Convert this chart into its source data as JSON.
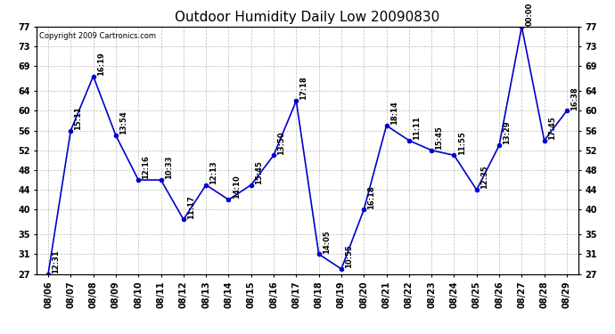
{
  "title": "Outdoor Humidity Daily Low 20090830",
  "copyright": "Copyright 2009 Cartronics.com",
  "x_labels": [
    "08/06",
    "08/07",
    "08/08",
    "08/09",
    "08/10",
    "08/11",
    "08/12",
    "08/13",
    "08/14",
    "08/15",
    "08/16",
    "08/17",
    "08/18",
    "08/19",
    "08/20",
    "08/21",
    "08/22",
    "08/23",
    "08/24",
    "08/25",
    "08/26",
    "08/27",
    "08/28",
    "08/29"
  ],
  "y_values": [
    27,
    56,
    67,
    55,
    46,
    46,
    38,
    45,
    42,
    45,
    51,
    62,
    31,
    28,
    40,
    57,
    54,
    52,
    51,
    44,
    53,
    77,
    54,
    60
  ],
  "point_labels": [
    "12:31",
    "15:11",
    "16:19",
    "13:54",
    "12:16",
    "10:33",
    "11:17",
    "12:13",
    "14:10",
    "15:45",
    "13:50",
    "17:18",
    "14:05",
    "10:55",
    "16:18",
    "18:14",
    "11:11",
    "15:45",
    "11:55",
    "12:35",
    "13:29",
    "00:00",
    "17:45",
    "16:38"
  ],
  "ylim": [
    27,
    77
  ],
  "y_ticks": [
    27,
    31,
    35,
    40,
    44,
    48,
    52,
    56,
    60,
    64,
    69,
    73,
    77
  ],
  "line_color": "#0000cc",
  "marker_color": "#0000cc",
  "bg_color": "#ffffff",
  "grid_color": "#bbbbbb",
  "title_fontsize": 11,
  "tick_fontsize": 7,
  "annot_fontsize": 6,
  "copyright_fontsize": 6
}
